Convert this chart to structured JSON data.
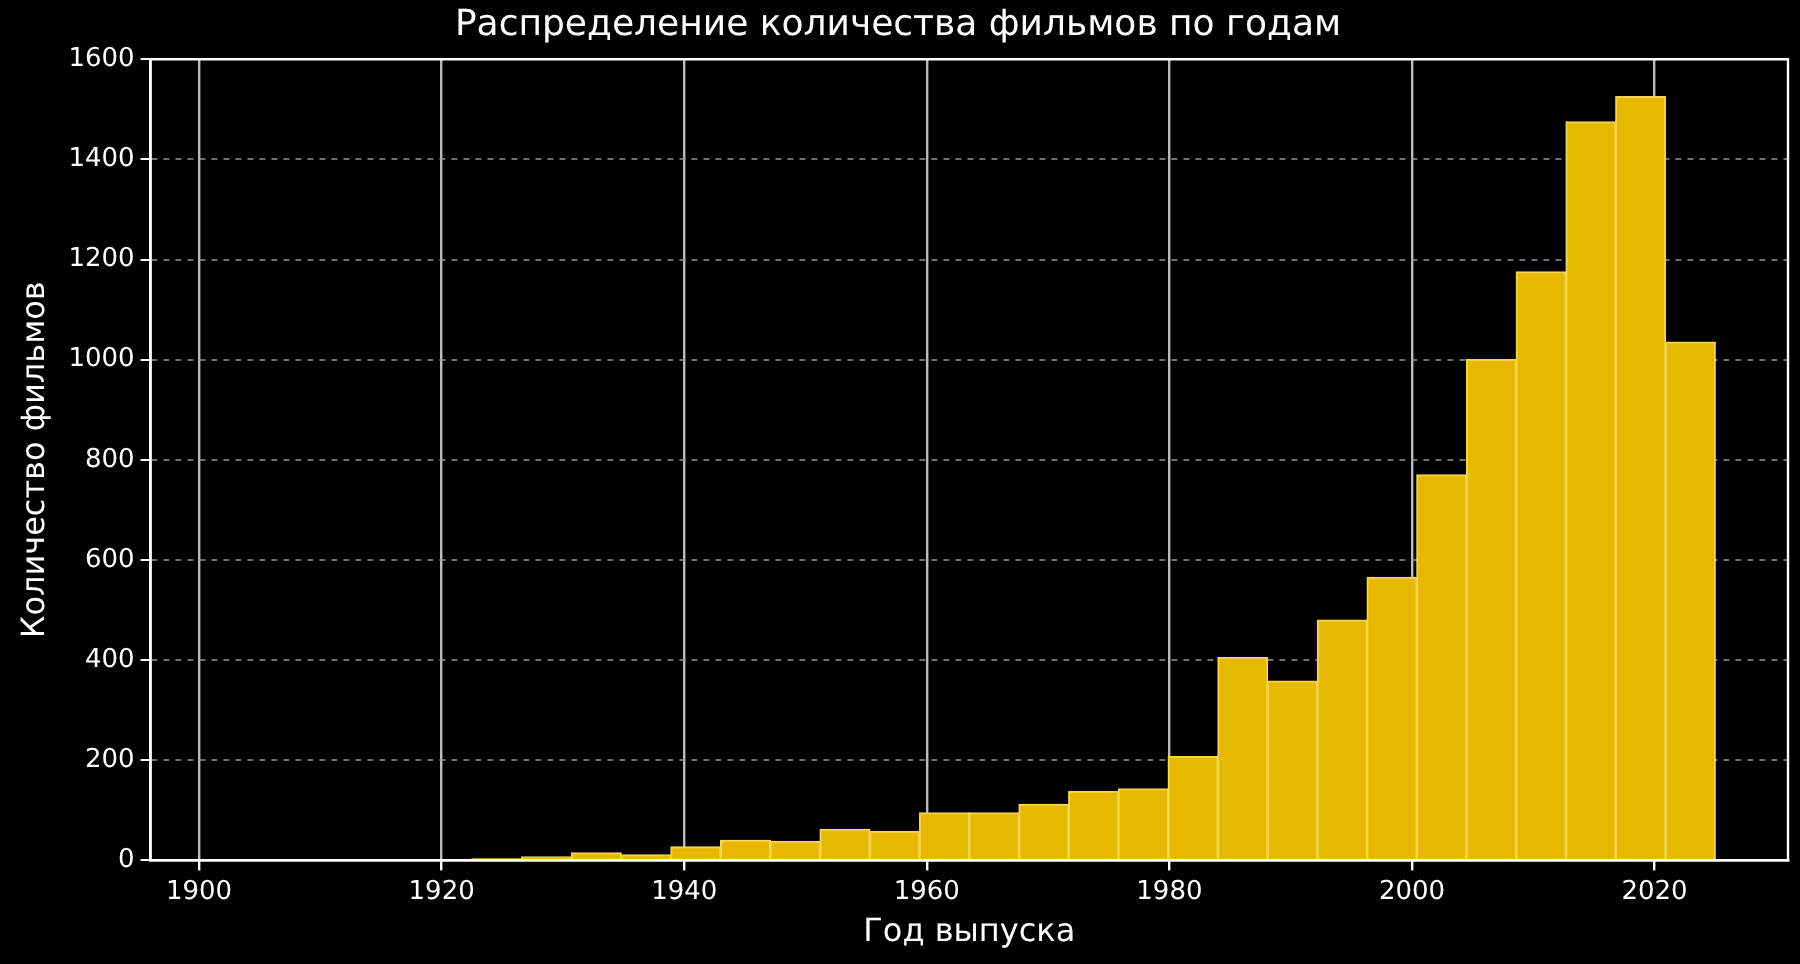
{
  "chart_data": {
    "type": "histogram",
    "title": "Распределение количества фильмов по годам",
    "xlabel": "Год выпуска",
    "ylabel": "Количество фильмов",
    "bins": [
      1902,
      1906.1,
      1910.2,
      1914.3,
      1918.4,
      1922.5,
      1926.6,
      1930.7,
      1934.8,
      1938.9,
      1943,
      1947.1,
      1951.2,
      1955.3,
      1959.4,
      1963.5,
      1967.6,
      1971.7,
      1975.8,
      1979.9,
      1984,
      1988.1,
      1992.2,
      1996.3,
      2000.4,
      2004.5,
      2008.6,
      2012.7,
      2016.8,
      2020.9,
      2025
    ],
    "values": [
      0,
      0,
      0,
      0,
      0,
      3,
      7,
      15,
      11,
      27,
      40,
      38,
      62,
      58,
      95,
      95,
      112,
      138,
      143,
      207,
      405,
      358,
      480,
      565,
      770,
      1000,
      1175,
      1475,
      1525,
      1035
    ],
    "color": "#e6b800",
    "xlim": [
      1896,
      2031
    ],
    "xticks": [
      1900,
      1920,
      1940,
      1960,
      1980,
      2000,
      2020
    ],
    "ylim": [
      0,
      1600
    ],
    "yticks": [
      0,
      200,
      400,
      600,
      800,
      1000,
      1200,
      1400,
      1600
    ],
    "grid": true,
    "legend": false
  }
}
